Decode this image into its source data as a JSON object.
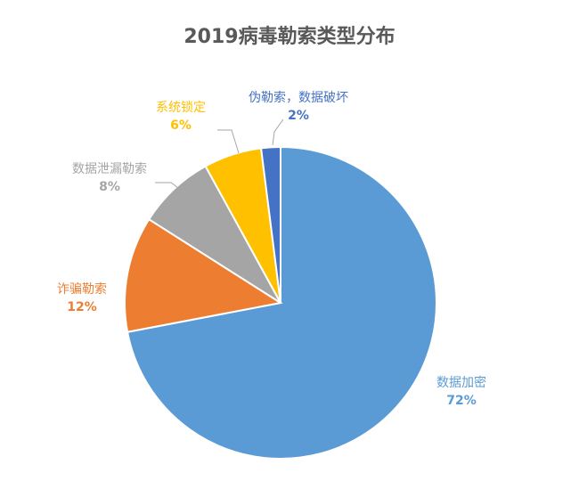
{
  "chart_data": {
    "type": "pie",
    "title": "2019病毒勒索类型分布",
    "slices": [
      {
        "label": "数据加密",
        "value": 72,
        "value_label": "72%",
        "color": "#5B9BD5",
        "label_color": "#5B9BD5"
      },
      {
        "label": "诈骗勒索",
        "value": 12,
        "value_label": "12%",
        "color": "#ED7D31",
        "label_color": "#ED7D31"
      },
      {
        "label": "数据泄漏勒索",
        "value": 8,
        "value_label": "8%",
        "color": "#A5A5A5",
        "label_color": "#A5A5A5"
      },
      {
        "label": "系统锁定",
        "value": 6,
        "value_label": "6%",
        "color": "#FFC000",
        "label_color": "#FFC000"
      },
      {
        "label": "伪勒索，数据破坏",
        "value": 2,
        "value_label": "2%",
        "color": "#4472C4",
        "label_color": "#4472C4"
      }
    ],
    "start_angle_deg": 0,
    "direction": "clockwise",
    "legend": "none"
  }
}
